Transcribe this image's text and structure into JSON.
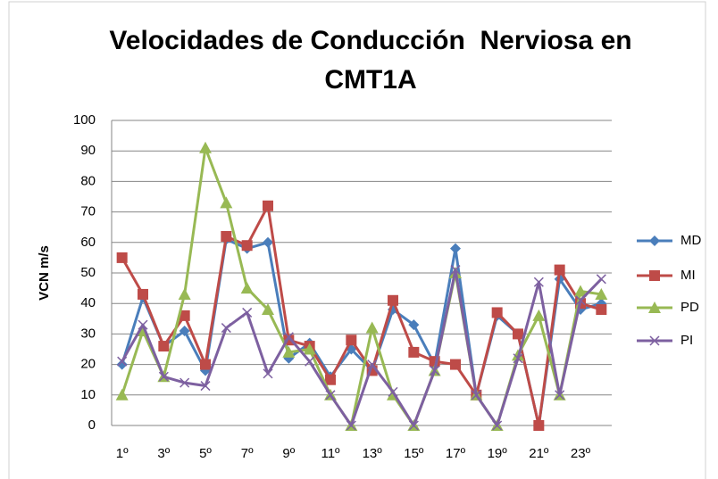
{
  "chart_data": {
    "type": "line",
    "title": [
      "Velocidades de Conducción  Nerviosa en",
      "CMT1A"
    ],
    "y_label": "VCN m/s",
    "categories": [
      "1º",
      null,
      "3º",
      null,
      "5º",
      null,
      "7º",
      null,
      "9º",
      null,
      "11º",
      null,
      "13º",
      null,
      "15º",
      null,
      "17º",
      null,
      "19º",
      null,
      "21º",
      null,
      "23º",
      null
    ],
    "series": [
      {
        "name": "MD",
        "color": "#4a7ebb",
        "marker": "diamond",
        "values": [
          20,
          42,
          26,
          31,
          18,
          61,
          58,
          60,
          22,
          27,
          16,
          25,
          18,
          38,
          33,
          20,
          58,
          10,
          36,
          30,
          0,
          48,
          38,
          40
        ]
      },
      {
        "name": "MI",
        "color": "#be4b48",
        "marker": "square",
        "values": [
          55,
          43,
          26,
          36,
          20,
          62,
          59,
          72,
          28,
          26,
          15,
          28,
          18,
          41,
          24,
          21,
          20,
          10,
          37,
          30,
          0,
          51,
          40,
          38
        ]
      },
      {
        "name": "PD",
        "color": "#98b954",
        "marker": "triangle",
        "values": [
          10,
          31,
          16,
          43,
          91,
          73,
          45,
          38,
          24,
          25,
          10,
          0,
          32,
          10,
          0,
          18,
          50,
          10,
          0,
          23,
          36,
          10,
          44,
          43
        ]
      },
      {
        "name": "PI",
        "color": "#7d60a0",
        "marker": "x",
        "values": [
          21,
          33,
          16,
          14,
          13,
          32,
          37,
          17,
          29,
          21,
          10,
          0,
          20,
          11,
          0,
          18,
          51,
          10,
          0,
          22,
          47,
          10,
          41,
          48
        ]
      }
    ],
    "ylim": [
      0,
      100
    ],
    "yticks": [
      0,
      10,
      20,
      30,
      40,
      50,
      60,
      70,
      80,
      90,
      100
    ],
    "grid": true,
    "legend": "right"
  }
}
